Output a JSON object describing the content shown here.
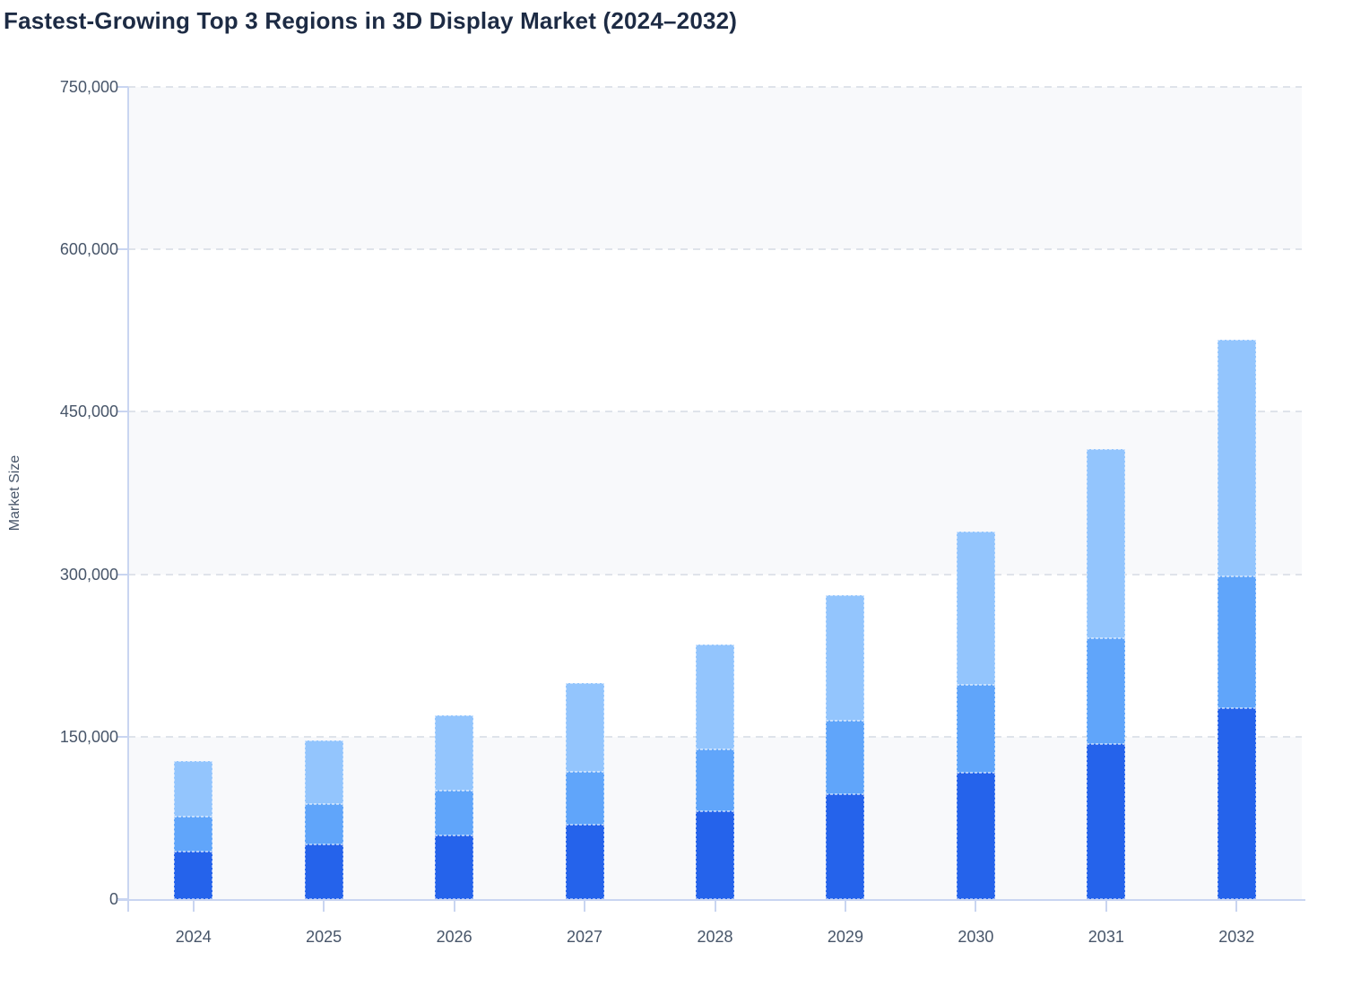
{
  "title": "Fastest-Growing Top 3 Regions in 3D Display Market (2024–2032)",
  "chart_data": {
    "type": "bar",
    "stacked": true,
    "title": "Fastest-Growing Top 3 Regions in 3D Display Market (2024–2032)",
    "xlabel": "",
    "ylabel": "Market Size",
    "ylim": [
      0,
      750000
    ],
    "yticks": [
      0,
      150000,
      300000,
      450000,
      600000,
      750000
    ],
    "ytick_labels": [
      "0",
      "150,000",
      "300,000",
      "450,000",
      "600,000",
      "750,000"
    ],
    "categories": [
      "2024",
      "2025",
      "2026",
      "2027",
      "2028",
      "2029",
      "2030",
      "2031",
      "2032"
    ],
    "series": [
      {
        "name": "Bottom segment (dark blue)",
        "color": "#2563eb",
        "values": [
          43500,
          50500,
          58500,
          68500,
          81500,
          96500,
          116500,
          143000,
          176500
        ]
      },
      {
        "name": "Middle segment (medium blue)",
        "color": "#60a5fa",
        "values": [
          33000,
          37000,
          41500,
          49000,
          57000,
          68000,
          81000,
          98000,
          121500
        ]
      },
      {
        "name": "Top segment (light blue)",
        "color": "#93c5fd",
        "values": [
          51000,
          59000,
          70000,
          82000,
          96500,
          116500,
          142000,
          174500,
          218500
        ]
      }
    ],
    "totals": [
      127500,
      146500,
      170000,
      199500,
      235000,
      281000,
      339500,
      415500,
      516500
    ],
    "legend": "none",
    "grid": "horizontal dashed lines every 150,000",
    "background_bands": "alternating gray/white between gridlines"
  },
  "colors": {
    "title_text": "#1d2b44",
    "axis_text": "#475569",
    "axis_line": "#c9d5f1",
    "gridline": "#dfe3ea",
    "band_gray": "#f8f9fb",
    "bar_dark": "#2563eb",
    "bar_medium": "#60a5fa",
    "bar_light": "#93c5fd"
  }
}
